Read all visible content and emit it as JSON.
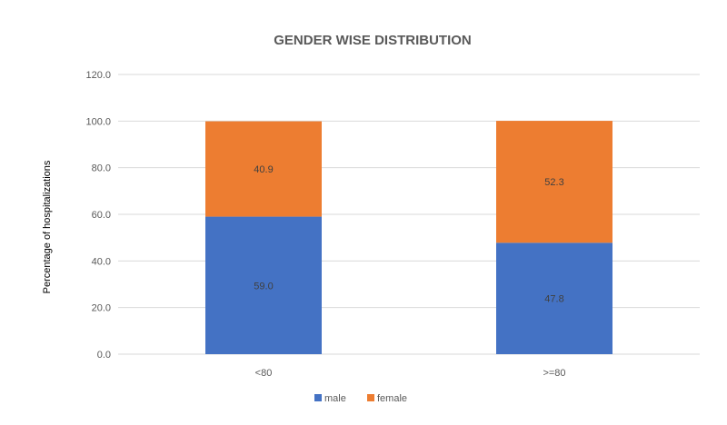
{
  "chart_data": {
    "type": "bar",
    "stacked": true,
    "title": "GENDER WISE DISTRIBUTION",
    "xlabel": "",
    "ylabel": "Percentage of hospitalizations",
    "categories": [
      "<80",
      ">=80"
    ],
    "series": [
      {
        "name": "male",
        "color": "#4472c4",
        "values": [
          59.0,
          47.8
        ],
        "labels": [
          "59.0",
          "47.8"
        ]
      },
      {
        "name": "female",
        "color": "#ed7d31",
        "values": [
          40.9,
          52.3
        ],
        "labels": [
          "40.9",
          "52.3"
        ]
      }
    ],
    "ylim": [
      0,
      120
    ],
    "yticks": [
      "0.0",
      "20.0",
      "40.0",
      "60.0",
      "80.0",
      "100.0",
      "120.0"
    ],
    "grid": true,
    "legend": "bottom"
  }
}
